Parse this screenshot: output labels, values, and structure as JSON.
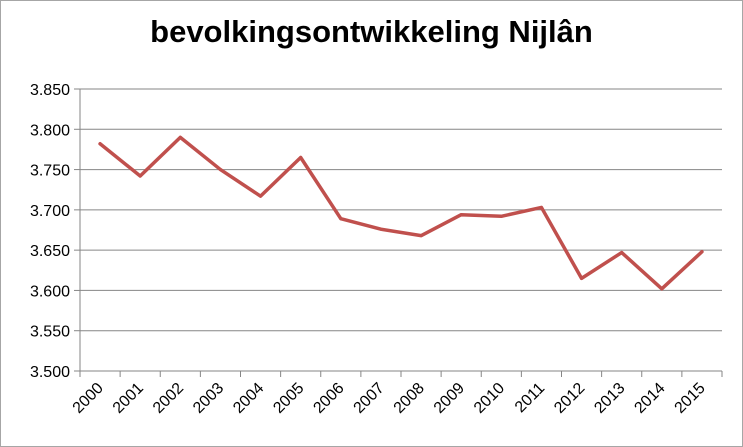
{
  "chart_data": {
    "type": "line",
    "title": "bevolkingsontwikkeling Nijlân",
    "xlabel": "",
    "ylabel": "",
    "categories": [
      "2000",
      "2001",
      "2002",
      "2003",
      "2004",
      "2005",
      "2006",
      "2007",
      "2008",
      "2009",
      "2010",
      "2011",
      "2012",
      "2013",
      "2014",
      "2015"
    ],
    "series": [
      {
        "values": [
          3782,
          3742,
          3790,
          3750,
          3717,
          3765,
          3689,
          3676,
          3668,
          3694,
          3692,
          3703,
          3615,
          3647,
          3602,
          3648
        ],
        "color": "#c0504d"
      }
    ],
    "ylim": [
      3500,
      3850
    ],
    "yticks": [
      3500,
      3550,
      3600,
      3650,
      3700,
      3750,
      3800,
      3850
    ],
    "ytick_labels": [
      "3.500",
      "3.550",
      "3.600",
      "3.650",
      "3.700",
      "3.750",
      "3.800",
      "3.850"
    ],
    "grid": true,
    "legend": "none"
  }
}
